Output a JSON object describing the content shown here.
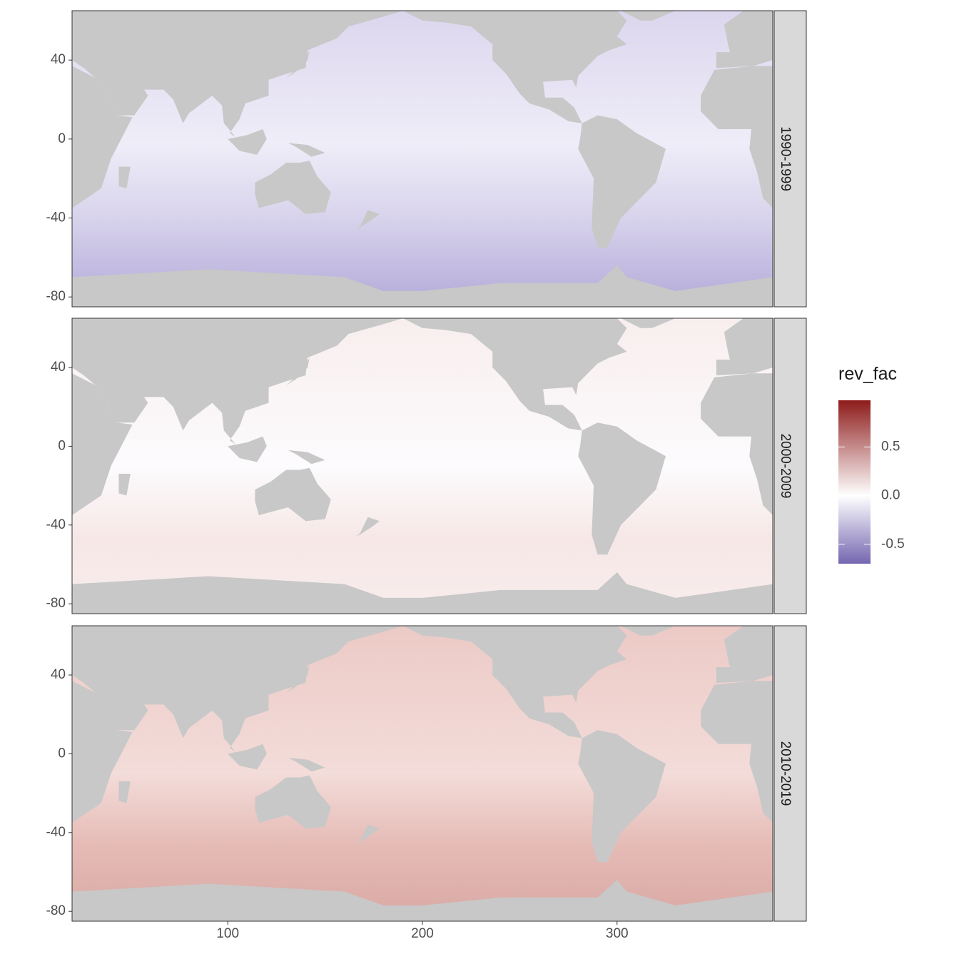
{
  "chart_data": {
    "type": "raster-map",
    "facets": [
      "1990-1999",
      "2000-2009",
      "2010-2019"
    ],
    "xlim": [
      20,
      380
    ],
    "xticks": [
      100,
      200,
      300
    ],
    "ylim": [
      -85,
      65
    ],
    "yticks": [
      -80,
      -40,
      0,
      40
    ],
    "legend": {
      "title": "rev_fac",
      "limits": [
        -0.7,
        0.98
      ],
      "ticks": [
        0.5,
        {
          "value": 0,
          "label": "0.0"
        },
        -0.5
      ],
      "colors": [
        "#7566b0",
        "#ffffff",
        "#8e1b1b"
      ]
    },
    "land_color": "#c8c8c8"
  }
}
